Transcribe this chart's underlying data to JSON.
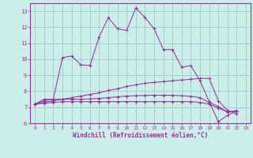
{
  "xlabel": "Windchill (Refroidissement éolien,°C)",
  "xlim": [
    -0.5,
    23.5
  ],
  "ylim": [
    6,
    13.5
  ],
  "yticks": [
    6,
    7,
    8,
    9,
    10,
    11,
    12,
    13
  ],
  "xticks": [
    0,
    1,
    2,
    3,
    4,
    5,
    6,
    7,
    8,
    9,
    10,
    11,
    12,
    13,
    14,
    15,
    16,
    17,
    18,
    19,
    20,
    21,
    22,
    23
  ],
  "bg_color": "#cceee8",
  "line_color": "#993399",
  "grid_color": "#99cccc",
  "series": [
    {
      "x": [
        0,
        1,
        2,
        3,
        4,
        5,
        6,
        7,
        8,
        9,
        10,
        11,
        12,
        13,
        14,
        15,
        16,
        17,
        18,
        19,
        20,
        21,
        22
      ],
      "y": [
        7.2,
        7.5,
        7.5,
        10.1,
        10.2,
        9.65,
        9.6,
        11.4,
        12.6,
        11.9,
        11.8,
        13.2,
        12.6,
        11.9,
        10.6,
        10.6,
        9.5,
        9.6,
        8.65,
        7.35,
        6.1,
        6.5,
        6.75
      ]
    },
    {
      "x": [
        0,
        1,
        2,
        3,
        4,
        5,
        6,
        7,
        8,
        9,
        10,
        11,
        12,
        13,
        14,
        15,
        16,
        17,
        18,
        19,
        20,
        21,
        22
      ],
      "y": [
        7.2,
        7.4,
        7.5,
        7.5,
        7.6,
        7.7,
        7.8,
        7.9,
        8.05,
        8.15,
        8.3,
        8.4,
        8.5,
        8.55,
        8.6,
        8.65,
        8.7,
        8.75,
        8.8,
        8.8,
        7.4,
        6.8,
        6.6
      ]
    },
    {
      "x": [
        0,
        1,
        2,
        3,
        4,
        5,
        6,
        7,
        8,
        9,
        10,
        11,
        12,
        13,
        14,
        15,
        16,
        17,
        18,
        19,
        20,
        21,
        22
      ],
      "y": [
        7.2,
        7.3,
        7.4,
        7.5,
        7.5,
        7.5,
        7.52,
        7.55,
        7.6,
        7.65,
        7.7,
        7.72,
        7.74,
        7.75,
        7.75,
        7.75,
        7.72,
        7.68,
        7.6,
        7.3,
        7.05,
        6.7,
        6.75
      ]
    },
    {
      "x": [
        0,
        1,
        2,
        3,
        4,
        5,
        6,
        7,
        8,
        9,
        10,
        11,
        12,
        13,
        14,
        15,
        16,
        17,
        18,
        19,
        20,
        21,
        22
      ],
      "y": [
        7.2,
        7.25,
        7.3,
        7.35,
        7.35,
        7.35,
        7.35,
        7.35,
        7.35,
        7.35,
        7.35,
        7.35,
        7.35,
        7.35,
        7.35,
        7.35,
        7.35,
        7.35,
        7.3,
        7.2,
        6.95,
        6.7,
        6.8
      ]
    }
  ]
}
